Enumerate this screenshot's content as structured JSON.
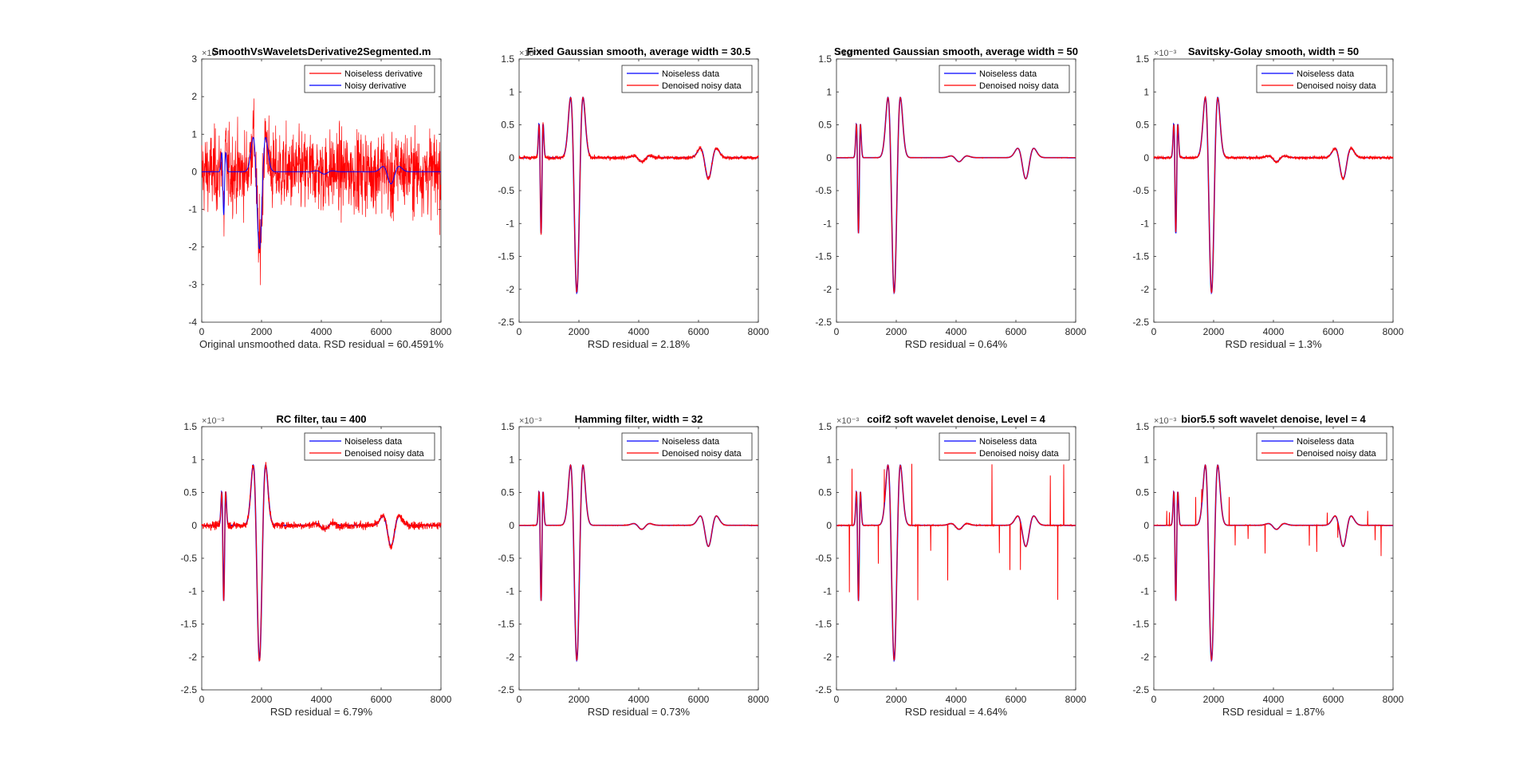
{
  "figure": {
    "background": "#ffffff",
    "axes_color": "#262626",
    "series_colors": {
      "noiseless": "#0000ff",
      "denoised": "#ff0000"
    }
  },
  "chart_data": [
    {
      "type": "line",
      "id": "original",
      "title": "SmoothVsWaveletsDerivative2Segmented.m",
      "xlabel": "Original unsmoothed data. RSD residual =  60.4591%",
      "exponent_label": "×10⁻³",
      "xlim": [
        0,
        8000
      ],
      "ylim": [
        -4,
        3
      ],
      "xticks": [
        0,
        2000,
        4000,
        6000,
        8000
      ],
      "yticks": [
        -4,
        -3,
        -2,
        -1,
        0,
        1,
        2,
        3
      ],
      "grid": false,
      "legend_position": "top-right",
      "noise_amplitude": 0.9,
      "spike_amplitude": 0,
      "series": [
        {
          "name": "Noiseless derivative",
          "color": "#ff0000"
        },
        {
          "name": "Noisy derivative",
          "color": "#0000ff"
        }
      ]
    },
    {
      "type": "line",
      "id": "fixed-gaussian",
      "title": "Fixed Gaussian smooth, average width =  30.5",
      "xlabel": "RSD residual =  2.18%",
      "exponent_label": "×10⁻³",
      "xlim": [
        0,
        8000
      ],
      "ylim": [
        -2.5,
        1.5
      ],
      "xticks": [
        0,
        2000,
        4000,
        6000,
        8000
      ],
      "yticks": [
        -2.5,
        -2,
        -1.5,
        -1,
        -0.5,
        0,
        0.5,
        1,
        1.5
      ],
      "grid": false,
      "legend_position": "top-right",
      "noise_amplitude": 0.025,
      "spike_amplitude": 0,
      "series": [
        {
          "name": "Noiseless data",
          "color": "#0000ff"
        },
        {
          "name": "Denoised noisy data",
          "color": "#ff0000"
        }
      ]
    },
    {
      "type": "line",
      "id": "segmented-gaussian",
      "title": "Segmented Gaussian smooth, average width =  50",
      "xlabel": "RSD residual =  0.64%",
      "exponent_label": "×10⁻³",
      "xlim": [
        0,
        8000
      ],
      "ylim": [
        -2.5,
        1.5
      ],
      "xticks": [
        0,
        2000,
        4000,
        6000,
        8000
      ],
      "yticks": [
        -2.5,
        -2,
        -1.5,
        -1,
        -0.5,
        0,
        0.5,
        1,
        1.5
      ],
      "grid": false,
      "legend_position": "top-right",
      "noise_amplitude": 0.003,
      "spike_amplitude": 0,
      "series": [
        {
          "name": "Noiseless data",
          "color": "#0000ff"
        },
        {
          "name": "Denoised noisy data",
          "color": "#ff0000"
        }
      ]
    },
    {
      "type": "line",
      "id": "savitsky-golay",
      "title": "Savitsky-Golay smooth, width = 50",
      "xlabel": "RSD residual =  1.3%",
      "exponent_label": "×10⁻³",
      "xlim": [
        0,
        8000
      ],
      "ylim": [
        -2.5,
        1.5
      ],
      "xticks": [
        0,
        2000,
        4000,
        6000,
        8000
      ],
      "yticks": [
        -2.5,
        -2,
        -1.5,
        -1,
        -0.5,
        0,
        0.5,
        1,
        1.5
      ],
      "grid": false,
      "legend_position": "top-right",
      "noise_amplitude": 0.018,
      "spike_amplitude": 0,
      "series": [
        {
          "name": "Noiseless data",
          "color": "#0000ff"
        },
        {
          "name": "Denoised noisy data",
          "color": "#ff0000"
        }
      ]
    },
    {
      "type": "line",
      "id": "rc-filter",
      "title": "RC filter, tau =  400",
      "xlabel": "RSD residual =  6.79%",
      "exponent_label": "×10⁻³",
      "xlim": [
        0,
        8000
      ],
      "ylim": [
        -2.5,
        1.5
      ],
      "xticks": [
        0,
        2000,
        4000,
        6000,
        8000
      ],
      "yticks": [
        -2.5,
        -2,
        -1.5,
        -1,
        -0.5,
        0,
        0.5,
        1,
        1.5
      ],
      "grid": false,
      "legend_position": "top-right",
      "noise_amplitude": 0.05,
      "spike_amplitude": 0,
      "series": [
        {
          "name": "Noiseless data",
          "color": "#0000ff"
        },
        {
          "name": "Denoised noisy data",
          "color": "#ff0000"
        }
      ]
    },
    {
      "type": "line",
      "id": "hamming-filter",
      "title": "Hamming filter, width = 32",
      "xlabel": "RSD residual =  0.73%",
      "exponent_label": "×10⁻³",
      "xlim": [
        0,
        8000
      ],
      "ylim": [
        -2.5,
        1.5
      ],
      "xticks": [
        0,
        2000,
        4000,
        6000,
        8000
      ],
      "yticks": [
        -2.5,
        -2,
        -1.5,
        -1,
        -0.5,
        0,
        0.5,
        1,
        1.5
      ],
      "grid": false,
      "legend_position": "top-right",
      "noise_amplitude": 0.004,
      "spike_amplitude": 0,
      "series": [
        {
          "name": "Noiseless data",
          "color": "#0000ff"
        },
        {
          "name": "Denoised noisy data",
          "color": "#ff0000"
        }
      ]
    },
    {
      "type": "line",
      "id": "coif2-wavelet",
      "title": "coif2 soft wavelet denoise, Level = 4",
      "xlabel": "RSD residual =  4.64%",
      "exponent_label": "×10⁻³",
      "xlim": [
        0,
        8000
      ],
      "ylim": [
        -2.5,
        1.5
      ],
      "xticks": [
        0,
        2000,
        4000,
        6000,
        8000
      ],
      "yticks": [
        -2.5,
        -2,
        -1.5,
        -1,
        -0.5,
        0,
        0.5,
        1,
        1.5
      ],
      "grid": false,
      "legend_position": "top-right",
      "noise_amplitude": 0.006,
      "spike_amplitude": 1.2,
      "series": [
        {
          "name": "Noiseless data",
          "color": "#0000ff"
        },
        {
          "name": "Denoised noisy data",
          "color": "#ff0000"
        }
      ]
    },
    {
      "type": "line",
      "id": "bior55-wavelet",
      "title": "bior5.5 soft wavelet denoise, level = 4",
      "xlabel": "RSD residual =  1.87%",
      "exponent_label": "×10⁻³",
      "xlim": [
        0,
        8000
      ],
      "ylim": [
        -2.5,
        1.5
      ],
      "xticks": [
        0,
        2000,
        4000,
        6000,
        8000
      ],
      "yticks": [
        -2.5,
        -2,
        -1.5,
        -1,
        -0.5,
        0,
        0.5,
        1,
        1.5
      ],
      "grid": false,
      "legend_position": "top-right",
      "noise_amplitude": 0.004,
      "spike_amplitude": 0.5,
      "series": [
        {
          "name": "Noiseless data",
          "color": "#0000ff"
        },
        {
          "name": "Denoised noisy data",
          "color": "#ff0000"
        }
      ]
    }
  ]
}
